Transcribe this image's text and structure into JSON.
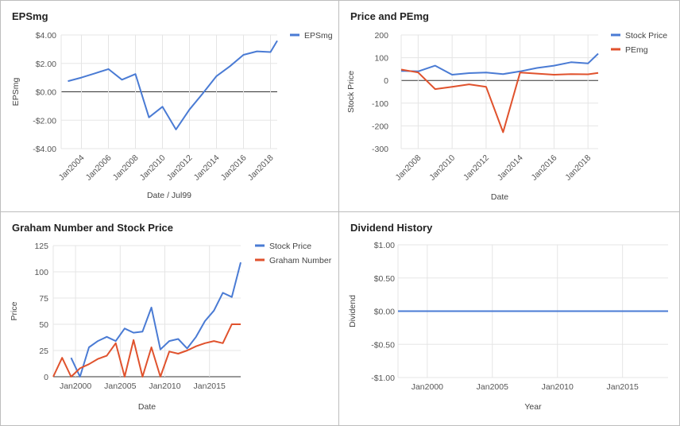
{
  "chart_data": [
    {
      "type": "line",
      "title": "EPSmg",
      "xlabel": "Date / Jul99",
      "ylabel": "EPSmg",
      "ylim": [
        -4,
        4
      ],
      "yticks": [
        -4,
        -2,
        0,
        2,
        4
      ],
      "ytick_labels": [
        "-$4.00",
        "-$2.00",
        "$0.00",
        "$2.00",
        "$4.00"
      ],
      "xlim": [
        2002.5,
        2018.5
      ],
      "xticks": [
        2004,
        2006,
        2008,
        2010,
        2012,
        2014,
        2016,
        2018
      ],
      "xtick_labels": [
        "Jan2004",
        "Jan2006",
        "Jan2008",
        "Jan2010",
        "Jan2012",
        "Jan2014",
        "Jan2016",
        "Jan2018"
      ],
      "legend": "top-right",
      "grid": true,
      "zero_line": true,
      "series": [
        {
          "name": "EPSmg",
          "color": "#4a7bd4",
          "x": [
            2003,
            2004,
            2005,
            2006,
            2007,
            2008,
            2009,
            2010,
            2011,
            2012,
            2013,
            2014,
            2015,
            2016,
            2017,
            2018,
            2018.5
          ],
          "values": [
            0.75,
            1.0,
            1.3,
            1.6,
            0.85,
            1.25,
            -1.8,
            -1.05,
            -2.65,
            -1.25,
            -0.1,
            1.1,
            1.8,
            2.6,
            2.85,
            2.8,
            3.6
          ]
        }
      ]
    },
    {
      "type": "line",
      "title": "Price and PEmg",
      "xlabel": "Date",
      "ylabel": "Stock Price",
      "ylim": [
        -300,
        200
      ],
      "yticks": [
        -300,
        -200,
        -100,
        0,
        100,
        200
      ],
      "ytick_labels": [
        "-300",
        "-200",
        "-100",
        "0",
        "100",
        "200"
      ],
      "xlim": [
        2007,
        2018.6
      ],
      "xticks": [
        2008,
        2010,
        2012,
        2014,
        2016,
        2018
      ],
      "xtick_labels": [
        "Jan2008",
        "Jan2010",
        "Jan2012",
        "Jan2014",
        "Jan2016",
        "Jan2018"
      ],
      "legend": "top-right",
      "grid": true,
      "zero_line": true,
      "series": [
        {
          "name": "Stock Price",
          "color": "#4a7bd4",
          "x": [
            2007,
            2008,
            2009,
            2010,
            2011,
            2012,
            2013,
            2014,
            2015,
            2016,
            2017,
            2018,
            2018.6
          ],
          "values": [
            42,
            40,
            65,
            25,
            32,
            35,
            28,
            40,
            55,
            65,
            80,
            75,
            118
          ]
        },
        {
          "name": "PEmg",
          "color": "#e0522d",
          "x": [
            2007,
            2008,
            2009,
            2010,
            2011,
            2012,
            2013,
            2014,
            2015,
            2016,
            2017,
            2018,
            2018.6
          ],
          "values": [
            48,
            35,
            -38,
            -28,
            -17,
            -28,
            -228,
            35,
            30,
            25,
            28,
            27,
            33
          ]
        }
      ]
    },
    {
      "type": "line",
      "title": "Graham Number and Stock Price",
      "xlabel": "Date",
      "ylabel": "Price",
      "ylim": [
        0,
        125
      ],
      "yticks": [
        0,
        25,
        50,
        75,
        100,
        125
      ],
      "ytick_labels": [
        "0",
        "25",
        "50",
        "75",
        "100",
        "125"
      ],
      "xlim": [
        1997.5,
        2018.5
      ],
      "xticks": [
        2000,
        2005,
        2010,
        2015
      ],
      "xtick_labels": [
        "Jan2000",
        "Jan2005",
        "Jan2010",
        "Jan2015"
      ],
      "legend": "top-right",
      "grid": true,
      "series": [
        {
          "name": "Stock Price",
          "color": "#4a7bd4",
          "x": [
            1999.5,
            2000.5,
            2001.5,
            2002.5,
            2003.5,
            2004.5,
            2005.5,
            2006.5,
            2007.5,
            2008.5,
            2009.5,
            2010.5,
            2011.5,
            2012.5,
            2013.5,
            2014.5,
            2015.5,
            2016.5,
            2017.5,
            2018.5
          ],
          "values": [
            18,
            0,
            28,
            34,
            38,
            34,
            46,
            42,
            43,
            66,
            26,
            34,
            36,
            27,
            38,
            53,
            63,
            80,
            76,
            109
          ]
        },
        {
          "name": "Graham Number",
          "color": "#e0522d",
          "x": [
            1997.5,
            1998.5,
            1999.5,
            2000.5,
            2001.5,
            2002.5,
            2003.5,
            2004.5,
            2005.5,
            2006.5,
            2007.5,
            2008.5,
            2009.5,
            2010.5,
            2011.5,
            2012.5,
            2013.5,
            2014.5,
            2015.5,
            2016.5,
            2017.5,
            2018.5
          ],
          "values": [
            0,
            18,
            0,
            8,
            12,
            17,
            20,
            32,
            0,
            35,
            0,
            28,
            0,
            24,
            22,
            25,
            29,
            32,
            34,
            32,
            50,
            50
          ]
        }
      ]
    },
    {
      "type": "line",
      "title": "Dividend History",
      "xlabel": "Year",
      "ylabel": "Dividend",
      "ylim": [
        -1,
        1
      ],
      "yticks": [
        -1,
        -0.5,
        0,
        0.5,
        1
      ],
      "ytick_labels": [
        "-$1.00",
        "-$0.50",
        "$0.00",
        "$0.50",
        "$1.00"
      ],
      "xlim": [
        1997.75,
        2018.5
      ],
      "xticks": [
        2000,
        2005,
        2010,
        2015
      ],
      "xtick_labels": [
        "Jan2000",
        "Jan2005",
        "Jan2010",
        "Jan2015"
      ],
      "grid": true,
      "series": [
        {
          "color": "#4a7bd4",
          "x": [
            1997.75,
            2018.5
          ],
          "values": [
            0,
            0
          ]
        }
      ]
    }
  ]
}
